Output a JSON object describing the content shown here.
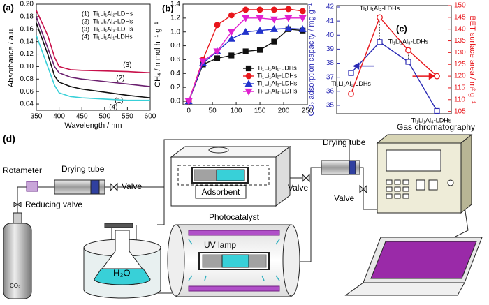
{
  "chart_data": [
    {
      "type": "line",
      "panel_label": "(a)",
      "xlabel": "Wavelength / nm",
      "ylabel": "Absorbance / a.u.",
      "x": [
        350,
        375,
        390,
        400,
        425,
        450,
        500,
        550,
        600
      ],
      "xlim": [
        350,
        600
      ],
      "xticks": [
        350,
        400,
        450,
        500,
        550,
        600
      ],
      "ylim": [
        0.03,
        0.2
      ],
      "yticks": [
        0.04,
        0.06,
        0.08,
        {
          "value": 0.1,
          "label": "0.10"
        },
        0.12,
        0.14,
        0.16,
        0.18,
        {
          "value": 0.2,
          "label": "0.20"
        }
      ],
      "legend": "upper right",
      "series": [
        {
          "tag": "(1)",
          "name": "Ti₁Li₁Al₂-LDHs",
          "color": "#111111",
          "values": [
            0.17,
            0.12,
            0.085,
            0.075,
            0.068,
            0.064,
            0.059,
            0.054,
            0.05
          ]
        },
        {
          "tag": "(2)",
          "name": "Ti₁Li₁Al₄-LDHs",
          "color": "#6a1f6e",
          "values": [
            0.18,
            0.13,
            0.1,
            0.09,
            0.083,
            0.08,
            0.076,
            0.072,
            0.068
          ]
        },
        {
          "tag": "(3)",
          "name": "Ti₁Li₁Al₃-LDHs",
          "color": "#c8104a",
          "values": [
            0.19,
            0.15,
            0.115,
            0.1,
            0.095,
            0.094,
            0.093,
            0.092,
            0.09
          ]
        },
        {
          "tag": "(4)",
          "name": "Ti₁Li₁Al₁-LDHs",
          "color": "#38d0d8",
          "values": [
            0.15,
            0.1,
            0.07,
            0.058,
            0.052,
            0.05,
            0.048,
            0.046,
            0.046
          ]
        }
      ]
    },
    {
      "type": "line",
      "panel_label": "(b)",
      "ylabel": "CH₄ / mmol h⁻¹ g⁻¹",
      "x": [
        0,
        30,
        60,
        90,
        120,
        150,
        180,
        210,
        240
      ],
      "xlim": [
        -12,
        250
      ],
      "xticks": [
        0,
        50,
        100,
        150,
        200,
        250
      ],
      "ylim": [
        -0.05,
        1.4
      ],
      "yticks": [
        {
          "value": 0,
          "label": "0.0"
        },
        0.2,
        0.4,
        0.6,
        0.8,
        {
          "value": 1,
          "label": "1.0"
        },
        1.2,
        1.4
      ],
      "legend": "lower right",
      "series": [
        {
          "name": "Ti₁Li₁Al₁-LDHs",
          "color": "#111111",
          "marker": "square",
          "values": [
            0,
            0.53,
            0.62,
            0.66,
            0.72,
            0.74,
            0.86,
            1.04,
            1.02
          ]
        },
        {
          "name": "Ti₁Li₁Al₂-LDHs",
          "color": "#e8161b",
          "marker": "circle",
          "values": [
            0,
            0.6,
            1.1,
            1.24,
            1.32,
            1.32,
            1.32,
            1.33,
            1.3
          ]
        },
        {
          "name": "Ti₁Li₁Al₃-LDHs",
          "color": "#2233cc",
          "marker": "triangle",
          "values": [
            0,
            0.55,
            0.72,
            0.9,
            1.0,
            1.02,
            1.04,
            1.05,
            1.04
          ]
        },
        {
          "name": "Ti₁Li₁Al₄-LDHs",
          "color": "#e020d0",
          "marker": "triangle-down",
          "values": [
            0,
            0.58,
            0.72,
            1.0,
            1.2,
            1.2,
            1.18,
            1.2,
            1.2
          ]
        }
      ]
    },
    {
      "type": "line",
      "panel_label": "(c)",
      "ylabel": "CO₂ adsorption capacity / mg g⁻¹",
      "y2label": "BET surface area / m² g⁻¹",
      "categories": [
        "Ti₁Li₁Al₁-LDHs",
        "Ti₁Li₁Al₂-LDHs",
        "Ti₁Li₁Al₃-LDHs",
        "Ti₁Li₁Al₄-LDHs"
      ],
      "ylim": [
        34.4,
        42.1
      ],
      "yticks": [
        35,
        36,
        37,
        38,
        39,
        40,
        41,
        42
      ],
      "ycolor": "#2b2bb5",
      "y2lim": [
        104,
        150
      ],
      "y2ticks": [
        105,
        110,
        115,
        120,
        125,
        130,
        135,
        140,
        145,
        150
      ],
      "y2color": "#e8161b",
      "series": [
        {
          "color": "#2b2bb5",
          "marker": "square-open",
          "values": [
            37.3,
            39.5,
            38.1,
            34.6
          ]
        },
        {
          "color": "#e8161b",
          "marker": "circle-open",
          "axis": "y2",
          "values": [
            112.5,
            145,
            131,
            120
          ]
        }
      ]
    }
  ],
  "diagram": {
    "label": "(d)",
    "rotameter": "Rotameter",
    "drying_tube_left": "Drying tube",
    "valve_left": "Valve",
    "reducing_valve": "Reducing valve",
    "cylinder": "CO₂",
    "adsorbent": "Adsorbent",
    "photocatalyst": "Photocatalyst",
    "uv_lamp": "UV lamp",
    "water": "H₂O",
    "valve_middle": "Valve",
    "drying_tube_right": "Drying tube",
    "valve_right": "Valve",
    "gas_chromatography": "Gas chromatography"
  }
}
